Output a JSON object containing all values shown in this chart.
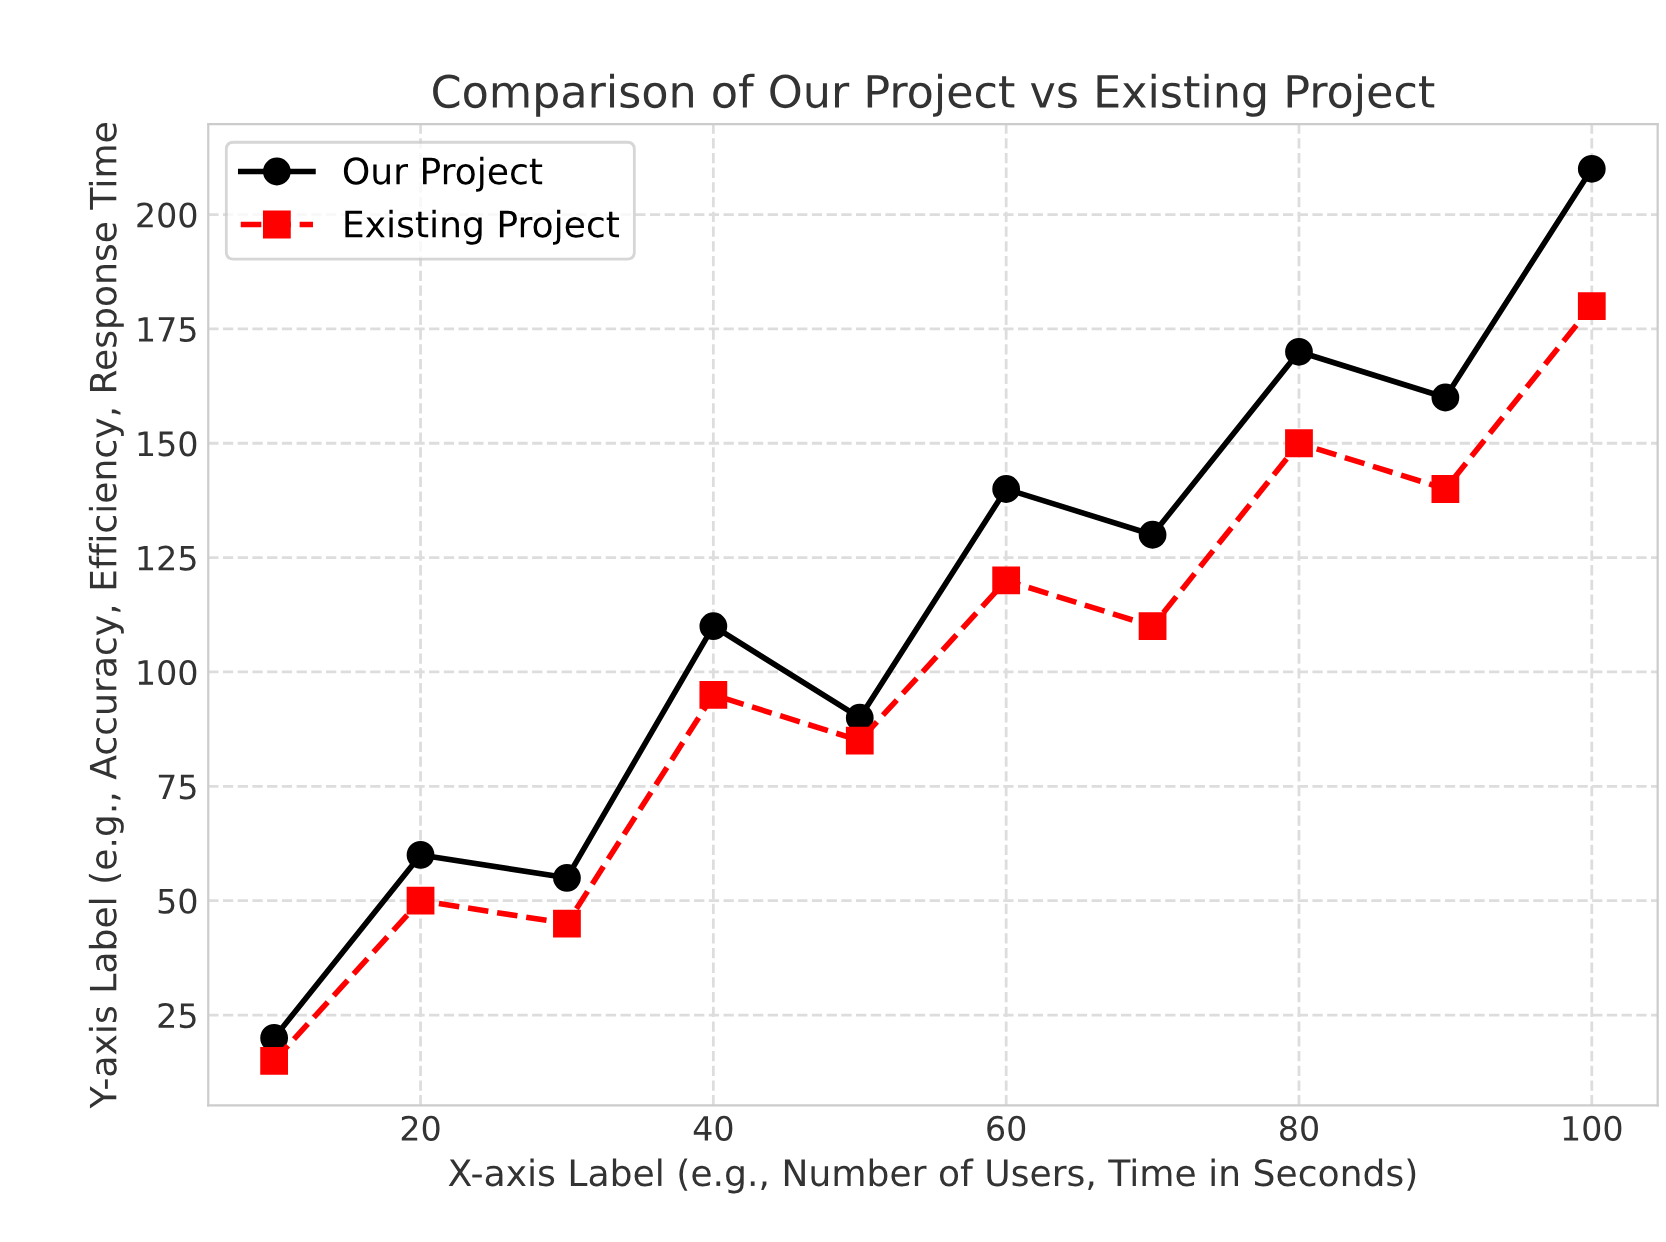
{
  "chart_data": {
    "type": "line",
    "title": "Comparison of Our Project vs Existing Project",
    "xlabel": "X-axis Label (e.g., Number of Users, Time in Seconds)",
    "ylabel": "Y-axis Label (e.g., Accuracy, Efficiency, Response Time",
    "x": [
      10,
      20,
      30,
      40,
      50,
      60,
      70,
      80,
      90,
      100
    ],
    "series": [
      {
        "name": "Our Project",
        "color": "#000000",
        "marker": "circle",
        "line_style": "solid",
        "values": [
          20,
          60,
          55,
          110,
          90,
          140,
          130,
          170,
          160,
          210
        ]
      },
      {
        "name": "Existing Project",
        "color": "#ff0000",
        "marker": "square",
        "line_style": "dashed",
        "values": [
          15,
          50,
          45,
          95,
          85,
          120,
          110,
          150,
          140,
          180
        ]
      }
    ],
    "xlim": [
      5.5,
      104.5
    ],
    "xticks": [
      20,
      40,
      60,
      80,
      100
    ],
    "ylim": [
      5.25,
      219.75
    ],
    "yticks": [
      25,
      50,
      75,
      100,
      125,
      150,
      175,
      200
    ],
    "grid": true,
    "legend": "top left"
  }
}
